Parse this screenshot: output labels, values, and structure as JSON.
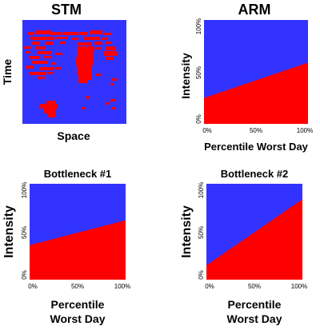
{
  "colors": {
    "high": "#ff0000",
    "low": "#3333ff"
  },
  "chart_data": [
    {
      "type": "heatmap",
      "title": "STM",
      "xlabel": "Space",
      "ylabel": "Time",
      "grid": false,
      "legend": "none"
    },
    {
      "type": "area",
      "title": "ARM",
      "xlabel": "Percentile Worst Day",
      "ylabel": "Intensity",
      "x": [
        0,
        100
      ],
      "boundary": [
        25,
        59
      ],
      "xticks": [
        "0%",
        "50%",
        "100%"
      ],
      "yticks": [
        "0%",
        "50%",
        "100%"
      ],
      "xlim": [
        0,
        100
      ],
      "ylim": [
        0,
        100
      ],
      "grid": false,
      "legend": "none"
    },
    {
      "type": "area",
      "title": "Bottleneck #1",
      "xlabel": "Percentile",
      "xlabel2": "Worst Day",
      "ylabel": "Intensity",
      "x": [
        0,
        100
      ],
      "boundary": [
        36,
        62
      ],
      "xticks": [
        "0%",
        "50%",
        "100%"
      ],
      "yticks": [
        "0%",
        "50%",
        "100%"
      ],
      "xlim": [
        0,
        100
      ],
      "ylim": [
        0,
        100
      ],
      "grid": false,
      "legend": "none"
    },
    {
      "type": "area",
      "title": "Bottleneck #2",
      "xlabel": "Percentile",
      "xlabel2": "Worst Day",
      "ylabel": "Intensity",
      "x": [
        0,
        100
      ],
      "boundary": [
        15,
        84
      ],
      "xticks": [
        "0%",
        "50%",
        "100%"
      ],
      "yticks": [
        "0%",
        "50%",
        "100%"
      ],
      "xlim": [
        0,
        100
      ],
      "ylim": [
        0,
        100
      ],
      "grid": false,
      "legend": "none"
    }
  ]
}
